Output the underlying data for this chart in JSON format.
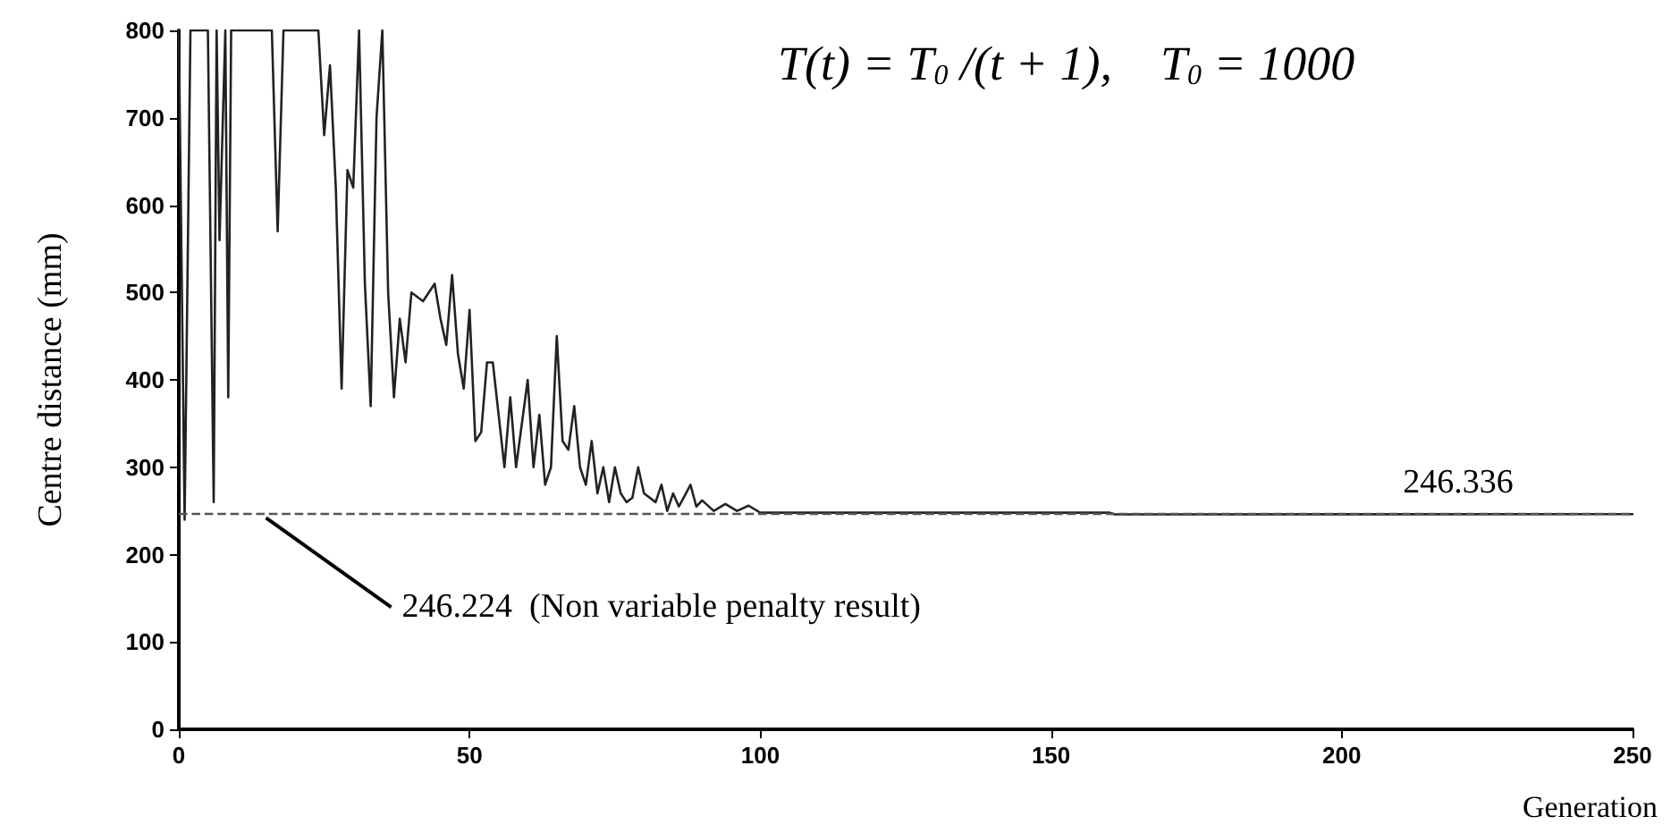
{
  "chart_data": {
    "type": "line",
    "xlabel": "Generation",
    "ylabel": "Centre distance (mm)",
    "xlim": [
      0,
      250
    ],
    "xticks": [
      0,
      50,
      100,
      150,
      200,
      250
    ],
    "ylim": [
      0,
      800
    ],
    "yticks": [
      0,
      100,
      200,
      300,
      400,
      500,
      600,
      700,
      800
    ],
    "grid": false,
    "marker": "none",
    "line_style": "solid",
    "x": [
      0,
      1,
      2,
      5,
      6,
      6.5,
      7,
      8,
      8.5,
      9,
      16,
      17,
      18,
      20,
      24,
      25,
      26,
      27,
      28,
      29,
      30,
      31,
      32,
      33,
      34,
      35,
      36,
      37,
      38,
      39,
      40,
      42,
      44,
      45,
      46,
      47,
      48,
      49,
      50,
      51,
      52,
      53,
      54,
      55,
      56,
      57,
      58,
      60,
      61,
      62,
      63,
      64,
      65,
      66,
      67,
      68,
      69,
      70,
      71,
      72,
      73,
      74,
      75,
      76,
      77,
      78,
      79,
      80,
      82,
      83,
      84,
      85,
      86,
      88,
      89,
      90,
      92,
      94,
      96,
      98,
      100,
      120,
      160,
      161,
      250
    ],
    "series": [
      {
        "color": "#222222",
        "values": [
          800,
          240,
          800,
          800,
          260,
          800,
          560,
          800,
          380,
          800,
          800,
          570,
          800,
          800,
          800,
          680,
          760,
          620,
          390,
          640,
          620,
          800,
          510,
          370,
          700,
          800,
          500,
          380,
          470,
          420,
          500,
          490,
          510,
          470,
          440,
          520,
          430,
          390,
          480,
          330,
          340,
          420,
          420,
          360,
          300,
          380,
          300,
          400,
          300,
          360,
          280,
          300,
          450,
          330,
          320,
          370,
          300,
          280,
          330,
          270,
          300,
          260,
          300,
          270,
          260,
          265,
          300,
          270,
          260,
          280,
          250,
          270,
          255,
          280,
          255,
          262,
          250,
          258,
          250,
          256,
          248,
          248,
          248,
          246,
          246.336
        ]
      }
    ],
    "ref_lines": [
      {
        "axis": "y",
        "value": 246.224,
        "label": "246.224  (Non variable penalty result)",
        "line_style": "dashed",
        "color": "#555555"
      }
    ],
    "annotations": [
      "T(t) = T$_{0}$ /(t + 1),    T$_{0}$ = 1000",
      {
        "text": "246.336",
        "x": 220,
        "y": 246.336
      }
    ]
  }
}
